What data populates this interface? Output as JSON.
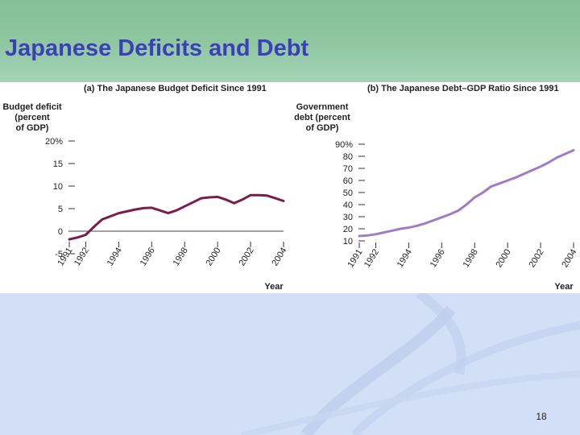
{
  "slide": {
    "title": "Japanese Deficits and Debt",
    "page_number": "18"
  },
  "colors": {
    "header": "#88c29b",
    "title": "#3b40b8",
    "deficit_line": "#7a1d4e",
    "debt_line": "#a07cc6",
    "background": "#d3dff7"
  },
  "chart_data": [
    {
      "type": "line",
      "title": "(a) The Japanese Budget Deficit Since 1991",
      "ylabel": [
        "Budget deficit",
        "(percent",
        "of GDP)"
      ],
      "xlabel": "Year",
      "ylim": [
        -5,
        20
      ],
      "xlim": [
        1991,
        2004
      ],
      "y_ticks": [
        -5,
        0,
        5,
        10,
        15,
        20
      ],
      "y_tick_labels": [
        "-5",
        "0",
        "5",
        "10",
        "15",
        "20%"
      ],
      "x_ticks": [
        1991,
        1992,
        1994,
        1996,
        1998,
        2000,
        2002,
        2004
      ],
      "x_tick_labels": [
        "1991",
        "1992",
        "1994",
        "1996",
        "1998",
        "2000",
        "2002",
        "2004"
      ],
      "x": [
        1991,
        1991.5,
        1992,
        1992.5,
        1993,
        1993.5,
        1994,
        1994.5,
        1995,
        1995.5,
        1996,
        1996.5,
        1997,
        1997.5,
        1998,
        1998.5,
        1999,
        1999.5,
        2000,
        2000.5,
        2001,
        2001.5,
        2002,
        2002.5,
        2003,
        2003.5,
        2004
      ],
      "y": [
        -1.8,
        -1.4,
        -0.8,
        1.0,
        2.6,
        3.3,
        4.0,
        4.4,
        4.8,
        5.1,
        5.2,
        4.6,
        4.0,
        4.6,
        5.5,
        6.4,
        7.3,
        7.5,
        7.6,
        7.0,
        6.2,
        7.0,
        8.0,
        8.0,
        7.9,
        7.3,
        6.7
      ],
      "line_color": "#7a1d4e"
    },
    {
      "type": "line",
      "title": "(b) The Japanese Debt–GDP Ratio Since 1991",
      "ylabel": [
        "Government",
        "debt (percent",
        "of GDP)"
      ],
      "xlabel": "Year",
      "ylim": [
        10,
        90
      ],
      "xlim": [
        1991,
        2004
      ],
      "y_ticks": [
        10,
        20,
        30,
        40,
        50,
        60,
        70,
        80,
        90
      ],
      "y_tick_labels": [
        "10",
        "20",
        "30",
        "40",
        "50",
        "60",
        "70",
        "80",
        "90%"
      ],
      "x_ticks": [
        1991,
        1992,
        1994,
        1996,
        1998,
        2000,
        2002,
        2004
      ],
      "x_tick_labels": [
        "1991",
        "1992",
        "1994",
        "1996",
        "1998",
        "2000",
        "2002",
        "2004"
      ],
      "x": [
        1991,
        1991.5,
        1992,
        1992.5,
        1993,
        1993.5,
        1994,
        1994.5,
        1995,
        1995.5,
        1996,
        1996.5,
        1997,
        1997.5,
        1998,
        1998.5,
        1999,
        1999.5,
        2000,
        2000.5,
        2001,
        2001.5,
        2002,
        2002.5,
        2003,
        2003.5,
        2004
      ],
      "y": [
        14,
        14.5,
        15.5,
        17,
        18.5,
        20,
        21,
        22.5,
        24.5,
        27,
        29.5,
        32,
        35,
        40,
        46,
        50,
        55,
        57.5,
        60,
        62.5,
        65.5,
        68.5,
        71.5,
        75,
        79,
        82,
        85
      ],
      "line_color": "#a07cc6"
    }
  ]
}
